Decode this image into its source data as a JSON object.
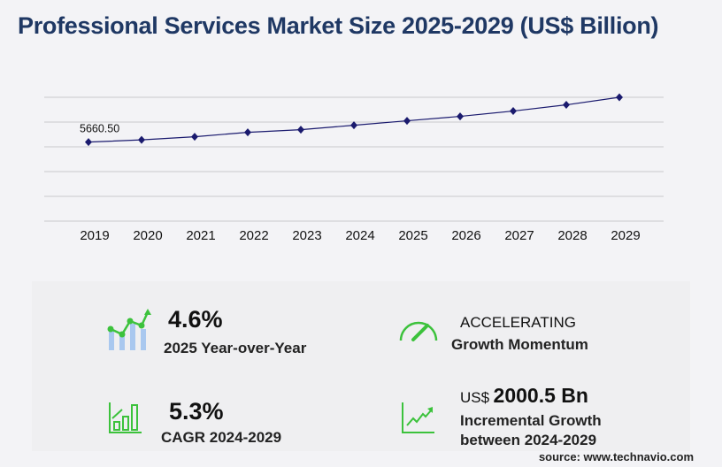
{
  "title": "Professional Services Market Size 2025-2029 (US$ Billion)",
  "chart_data": {
    "type": "line",
    "categories": [
      "2019",
      "2020",
      "2021",
      "2022",
      "2023",
      "2024",
      "2025",
      "2026",
      "2027",
      "2028",
      "2029"
    ],
    "values": [
      5660.5,
      5819,
      6042,
      6359,
      6550,
      6867,
      7184,
      7502,
      7883,
      8327,
      8868
    ],
    "data_labels": {
      "2019": "5660.50"
    },
    "ylim": [
      0,
      8868
    ],
    "grid": true,
    "line_color": "#1a1a6e"
  },
  "kpis": {
    "yoy": {
      "value": "4.6%",
      "label": "2025 Year-over-Year"
    },
    "momentum": {
      "value": "ACCELERATING",
      "label": "Growth Momentum"
    },
    "cagr": {
      "value": "5.3%",
      "label": "CAGR 2024-2029"
    },
    "incremental": {
      "prefix": "US$",
      "value": "2000.5 Bn",
      "label1": "Incremental Growth",
      "label2": "between 2024-2029"
    }
  },
  "source": "source: www.technavio.com",
  "colors": {
    "title": "#1f3864",
    "icon_green": "#3cc23c",
    "icon_blue": "#a9c8ef"
  }
}
